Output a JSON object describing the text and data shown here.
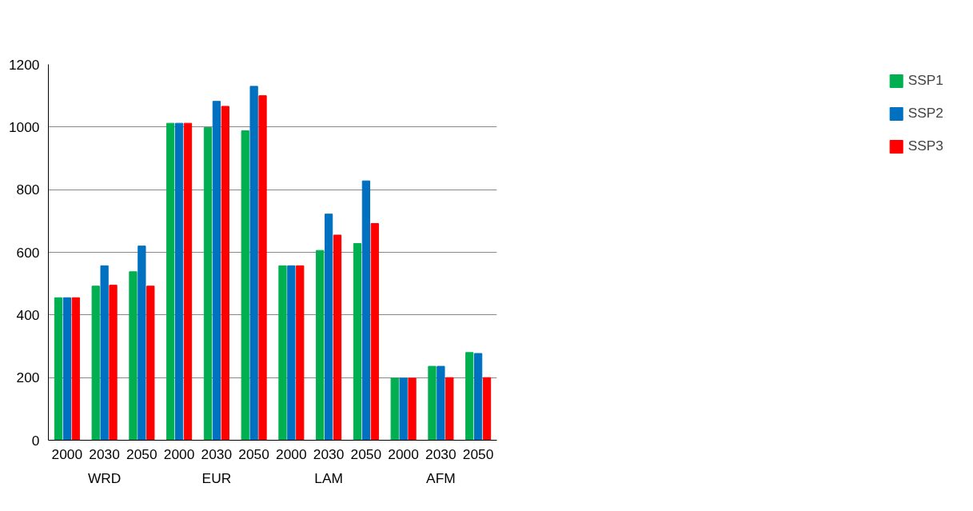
{
  "chart_data": {
    "type": "bar",
    "categories": [
      "2000",
      "2030",
      "2050",
      "2000",
      "2030",
      "2050",
      "2000",
      "2030",
      "2050",
      "2000",
      "2030",
      "2050"
    ],
    "annotations": [
      "WRD",
      "EUR",
      "LAM",
      "AFM"
    ],
    "series": [
      {
        "name": "SSP1",
        "color": "#00b050",
        "values": [
          455,
          492,
          538,
          1012,
          998,
          988,
          557,
          606,
          628,
          198,
          236,
          280
        ]
      },
      {
        "name": "SSP2",
        "color": "#0070c0",
        "values": [
          455,
          557,
          620,
          1012,
          1082,
          1130,
          557,
          722,
          828,
          198,
          236,
          277
        ]
      },
      {
        "name": "SSP3",
        "color": "#ff0000",
        "values": [
          455,
          495,
          492,
          1012,
          1066,
          1100,
          557,
          655,
          692,
          198,
          200,
          200
        ]
      }
    ],
    "ylim": [
      0,
      1200
    ],
    "yticks": [
      0,
      200,
      400,
      600,
      800,
      1000,
      1200
    ],
    "grid": "y",
    "legend": "right"
  }
}
